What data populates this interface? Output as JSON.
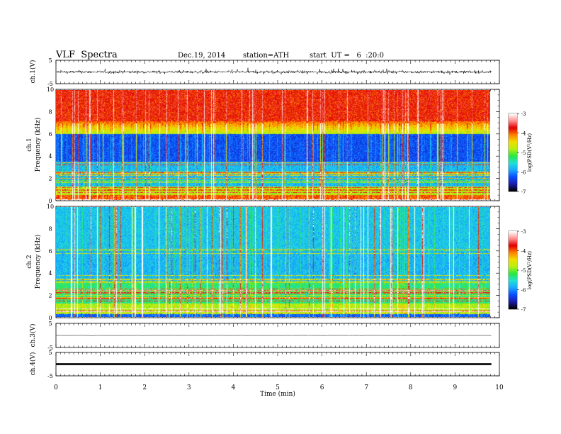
{
  "header": {
    "title": "VLF  Spectra",
    "date": "Dec.19, 2014",
    "station": "station=ATH",
    "start": "start  UT =   6  :20:0"
  },
  "chart_data": {
    "type": "heatmap",
    "x_axis": {
      "label": "Time  (min)",
      "range": [
        0,
        10
      ],
      "ticks": [
        "0",
        "1",
        "2",
        "3",
        "4",
        "5",
        "6",
        "7",
        "8",
        "9",
        "10"
      ],
      "data_end": 9.82
    },
    "panels": [
      {
        "id": "ch1-wave",
        "type": "line",
        "ylabel": "ch.1(V)",
        "yticks": [
          "5",
          "-5"
        ],
        "ylim": [
          -5,
          5
        ],
        "amplitude_v": 1.8
      },
      {
        "id": "ch1-spec",
        "type": "heatmap",
        "ylabel": "ch.1\nFrequency  (kHz)",
        "ylabel_line1": "ch.1",
        "ylabel_line2": "Frequency  (kHz)",
        "yticks": [
          "0",
          "2",
          "4",
          "6",
          "8",
          "10"
        ],
        "ylim": [
          0,
          10
        ]
      },
      {
        "id": "ch2-spec",
        "type": "heatmap",
        "ylabel_line1": "ch.2",
        "ylabel_line2": "Frequency  (kHz)",
        "yticks": [
          "0",
          "2",
          "4",
          "6",
          "8",
          "10"
        ],
        "ylim": [
          0,
          10
        ]
      },
      {
        "id": "ch3-wave",
        "type": "line",
        "ylabel": "ch.3(V)",
        "yticks": [
          "5",
          "-5"
        ],
        "ylim": [
          -5,
          5
        ],
        "amplitude_v": 0.3
      },
      {
        "id": "ch4-wave",
        "type": "line",
        "ylabel": "ch.4(V)",
        "yticks": [
          "5",
          "-5"
        ],
        "ylim": [
          -5,
          5
        ],
        "amplitude_v": 0.4
      }
    ],
    "colorbar": {
      "label": "log(PSD(V²/Hz)",
      "ticks": [
        "-3",
        "-4",
        "-5",
        "-6",
        "-7"
      ],
      "range": [
        -7,
        -3
      ],
      "colors": [
        "#000000",
        "#1c1ca8",
        "#0a4cff",
        "#18a8ff",
        "#20e0d8",
        "#28e840",
        "#b8f010",
        "#f0e000",
        "#ff8000",
        "#e00000",
        "#ff9090",
        "#ffffff"
      ]
    }
  }
}
